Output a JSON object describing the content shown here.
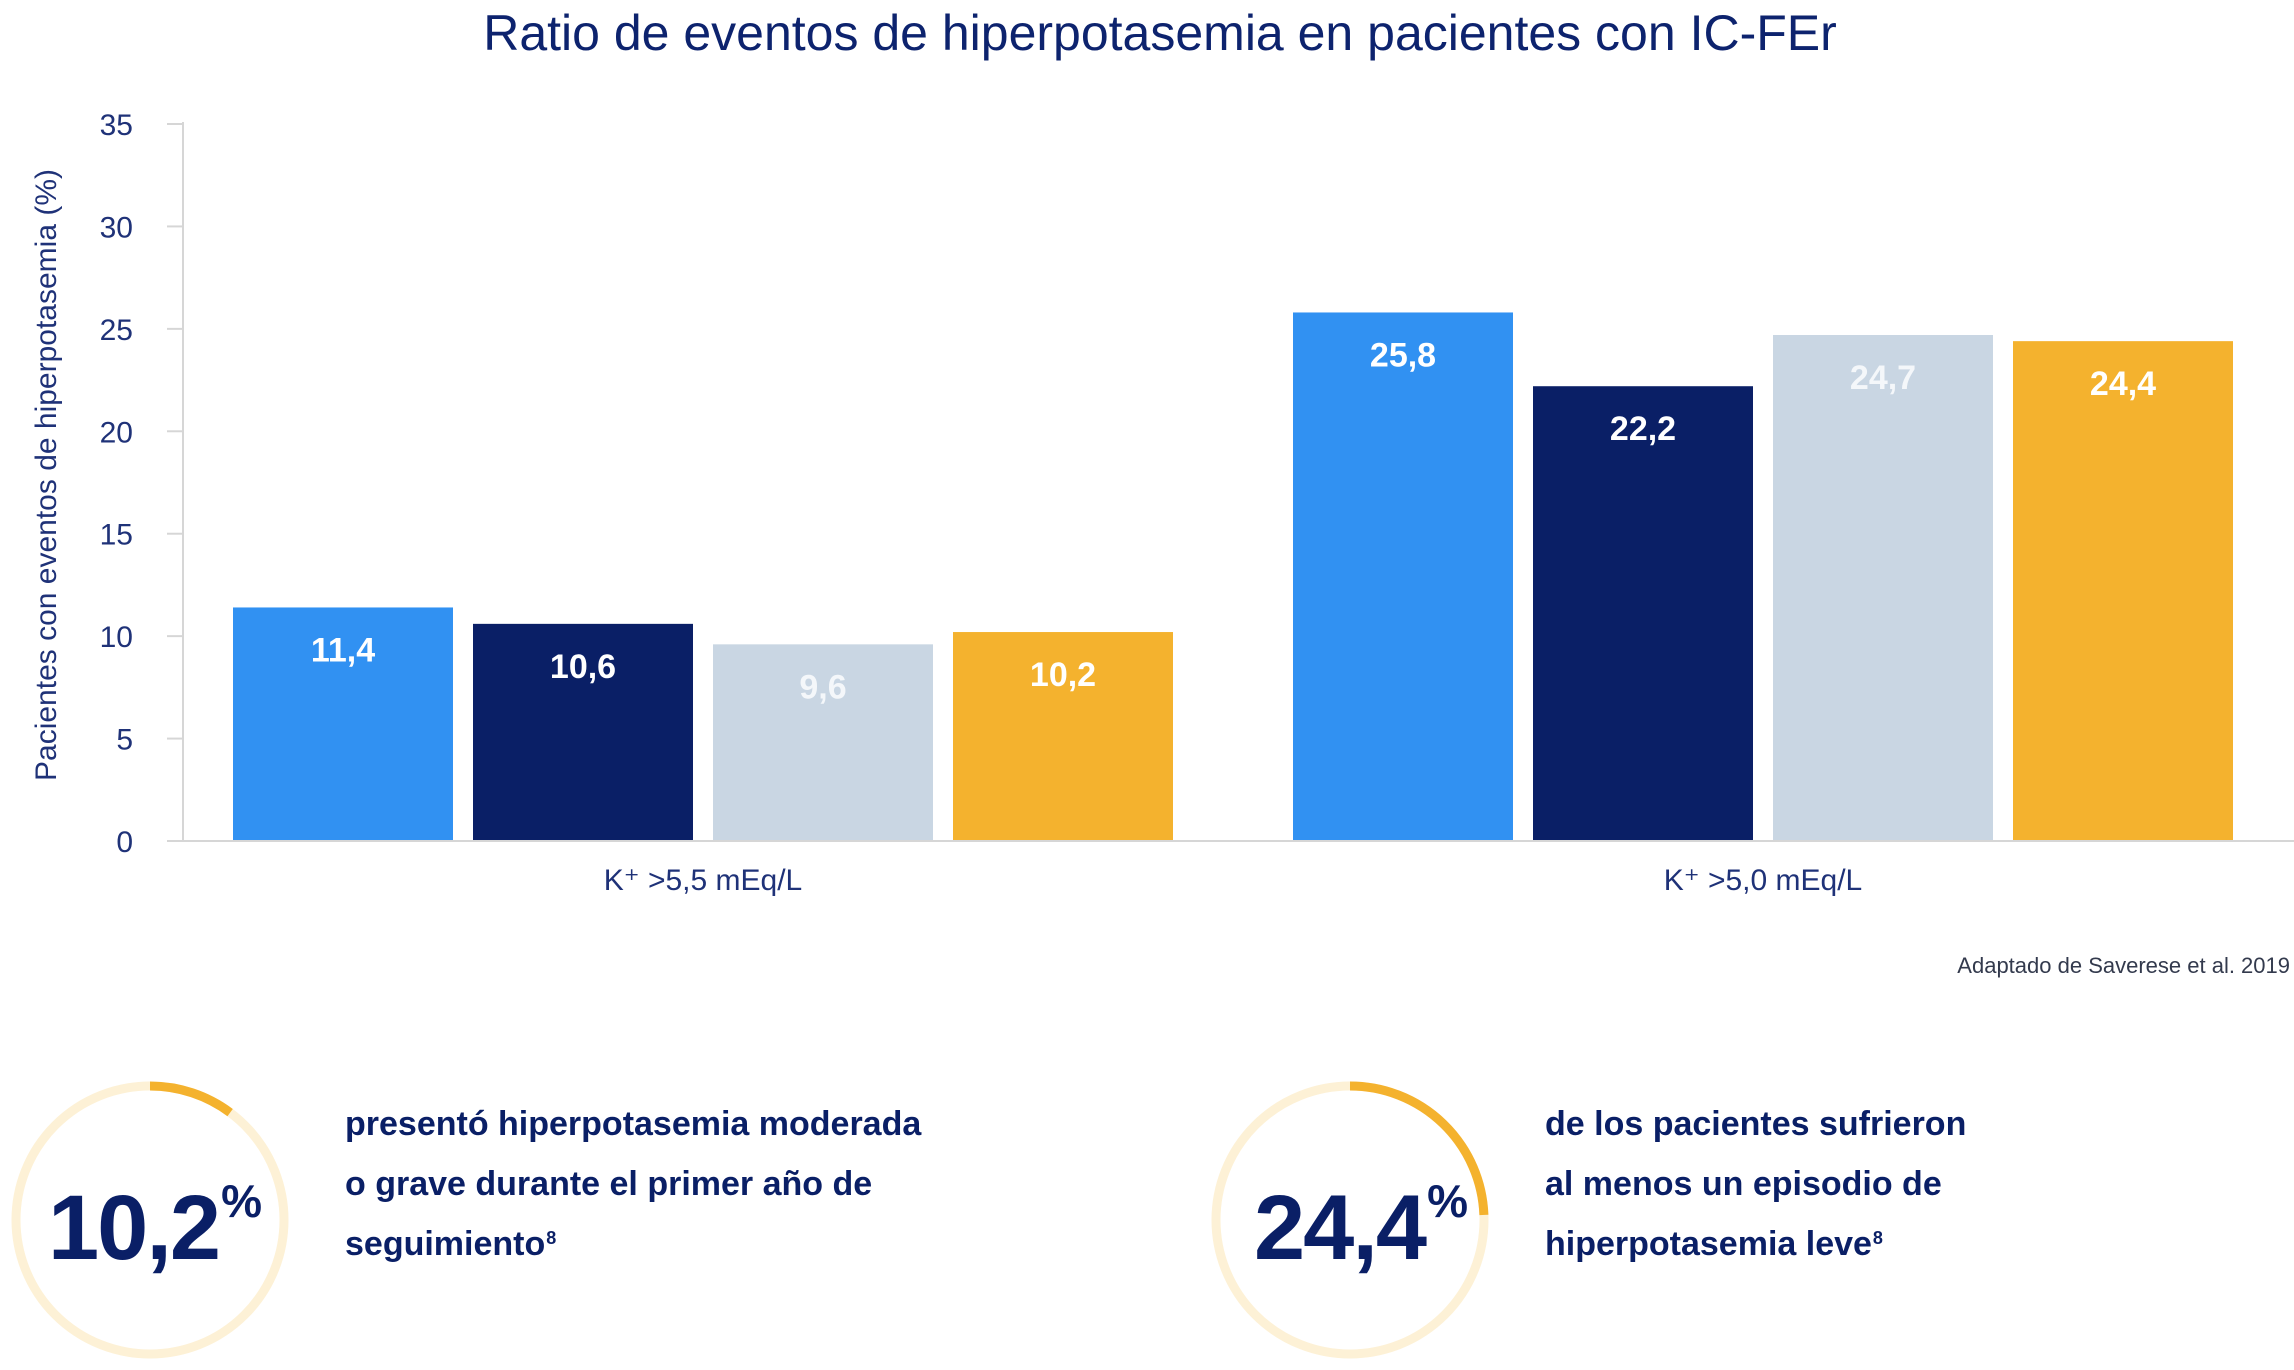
{
  "chart_data": {
    "type": "bar",
    "title": "Ratio de eventos de hiperpotasemia en pacientes con IC-FEr",
    "ylabel": "Pacientes con eventos de hiperpotasemia (%)",
    "xlabel": "",
    "ylim": [
      0,
      35
    ],
    "yticks": [
      0,
      5,
      10,
      15,
      20,
      25,
      30,
      35
    ],
    "grid": false,
    "categories": [
      "K⁺ >5,5 mEq/L",
      "K⁺ >5,0 mEq/L"
    ],
    "series": [
      {
        "values": [
          11.4,
          25.8
        ],
        "labels": [
          "11,4",
          "25,8"
        ],
        "color": "#3191f2",
        "label_color": "#ffffff"
      },
      {
        "values": [
          10.6,
          22.2
        ],
        "labels": [
          "10,6",
          "22,2"
        ],
        "color": "#0a1f66",
        "label_color": "#ffffff"
      },
      {
        "values": [
          9.6,
          24.7
        ],
        "labels": [
          "9,6",
          "24,7"
        ],
        "color": "#c9d6e3",
        "label_color": "#f4f7fa"
      },
      {
        "values": [
          10.2,
          24.4
        ],
        "labels": [
          "10,2",
          "24,4"
        ],
        "color": "#f4b22e",
        "label_color": "#ffffff"
      }
    ],
    "source": "Adaptado de Saverese et al. 2019"
  },
  "stats": [
    {
      "value": "10,2",
      "unit": "%",
      "fraction": 0.102,
      "text_lines": [
        "presentó hiperpotasemia moderada",
        "o grave durante el primer año de",
        "seguimiento"
      ],
      "footnote": "8"
    },
    {
      "value": "24,4",
      "unit": "%",
      "fraction": 0.244,
      "text_lines": [
        "de los pacientes sufrieron",
        "al menos un episodio de",
        "hiperpotasemia leve"
      ],
      "footnote": "8"
    }
  ],
  "colors": {
    "ring_track": "#fdf1d6",
    "ring_fill": "#f4b22e",
    "axis": "#d6d6d6",
    "text": "#0a1f66"
  }
}
